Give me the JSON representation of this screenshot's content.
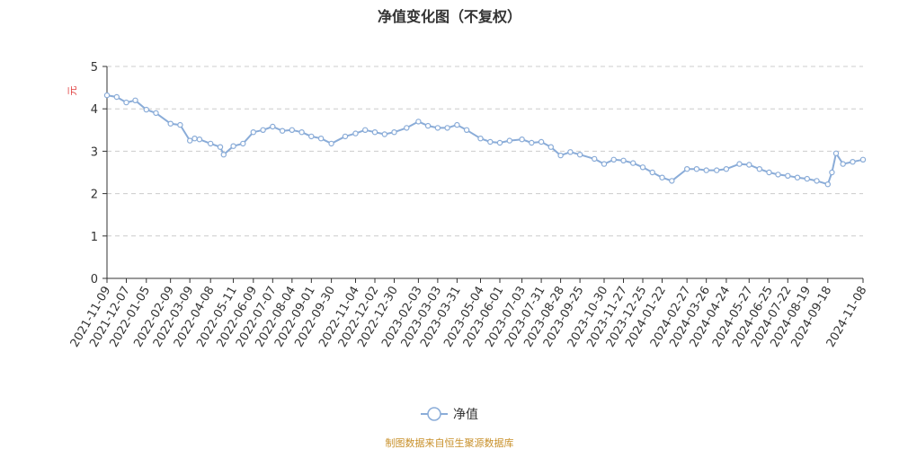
{
  "chart_data": {
    "type": "line",
    "title": "净值变化图（不复权）",
    "ylabel": "元",
    "ylim": [
      0,
      5
    ],
    "yticks": [
      0,
      1,
      2,
      3,
      4,
      5
    ],
    "grid": true,
    "legend": {
      "position": "bottom-center",
      "entries": [
        "净值"
      ]
    },
    "x_tick_labels": [
      "2021-11-09",
      "2021-12-07",
      "2022-01-05",
      "2022-02-09",
      "2022-03-09",
      "2022-04-08",
      "2022-05-11",
      "2022-06-09",
      "2022-07-07",
      "2022-08-04",
      "2022-09-01",
      "2022-09-30",
      "2022-11-04",
      "2022-12-02",
      "2022-12-30",
      "2023-02-03",
      "2023-03-03",
      "2023-03-31",
      "2023-05-04",
      "2023-06-01",
      "2023-07-03",
      "2023-07-31",
      "2023-08-28",
      "2023-09-25",
      "2023-10-30",
      "2023-11-27",
      "2023-12-25",
      "2024-01-22",
      "2024-02-27",
      "2024-03-26",
      "2024-04-24",
      "2024-05-27",
      "2024-06-25",
      "2024-07-22",
      "2024-08-19",
      "2024-09-18",
      "2024-11-08"
    ],
    "series": [
      {
        "name": "净值",
        "color": "#8aacd8",
        "x": [
          "2021-11-09",
          "2021-11-23",
          "2021-12-07",
          "2021-12-20",
          "2022-01-05",
          "2022-01-19",
          "2022-02-09",
          "2022-02-23",
          "2022-03-09",
          "2022-03-16",
          "2022-03-23",
          "2022-04-08",
          "2022-04-22",
          "2022-04-27",
          "2022-05-11",
          "2022-05-25",
          "2022-06-09",
          "2022-06-23",
          "2022-07-07",
          "2022-07-21",
          "2022-08-04",
          "2022-08-18",
          "2022-09-01",
          "2022-09-15",
          "2022-09-30",
          "2022-10-20",
          "2022-11-04",
          "2022-11-18",
          "2022-12-02",
          "2022-12-16",
          "2022-12-30",
          "2023-01-17",
          "2023-02-03",
          "2023-02-17",
          "2023-03-03",
          "2023-03-17",
          "2023-03-31",
          "2023-04-14",
          "2023-05-04",
          "2023-05-18",
          "2023-06-01",
          "2023-06-15",
          "2023-07-03",
          "2023-07-17",
          "2023-07-31",
          "2023-08-14",
          "2023-08-28",
          "2023-09-11",
          "2023-09-25",
          "2023-10-16",
          "2023-10-30",
          "2023-11-13",
          "2023-11-27",
          "2023-12-11",
          "2023-12-25",
          "2024-01-08",
          "2024-01-22",
          "2024-02-05",
          "2024-02-27",
          "2024-03-12",
          "2024-03-26",
          "2024-04-10",
          "2024-04-24",
          "2024-05-13",
          "2024-05-27",
          "2024-06-11",
          "2024-06-25",
          "2024-07-08",
          "2024-07-22",
          "2024-08-05",
          "2024-08-19",
          "2024-09-02",
          "2024-09-18",
          "2024-09-24",
          "2024-09-30",
          "2024-10-10",
          "2024-10-24",
          "2024-11-08"
        ],
        "values": [
          4.32,
          4.28,
          4.15,
          4.2,
          3.98,
          3.9,
          3.65,
          3.62,
          3.25,
          3.3,
          3.28,
          3.18,
          3.1,
          2.92,
          3.12,
          3.18,
          3.45,
          3.5,
          3.58,
          3.48,
          3.5,
          3.45,
          3.35,
          3.3,
          3.18,
          3.35,
          3.42,
          3.5,
          3.45,
          3.4,
          3.45,
          3.55,
          3.7,
          3.6,
          3.55,
          3.55,
          3.62,
          3.5,
          3.3,
          3.22,
          3.2,
          3.25,
          3.28,
          3.2,
          3.22,
          3.1,
          2.9,
          2.98,
          2.92,
          2.82,
          2.7,
          2.8,
          2.78,
          2.72,
          2.62,
          2.5,
          2.38,
          2.3,
          2.58,
          2.58,
          2.55,
          2.55,
          2.58,
          2.7,
          2.68,
          2.58,
          2.5,
          2.45,
          2.42,
          2.38,
          2.35,
          2.3,
          2.22,
          2.5,
          2.95,
          2.7,
          2.75,
          2.8
        ]
      }
    ]
  },
  "source_note": "制图数据来自恒生聚源数据库"
}
